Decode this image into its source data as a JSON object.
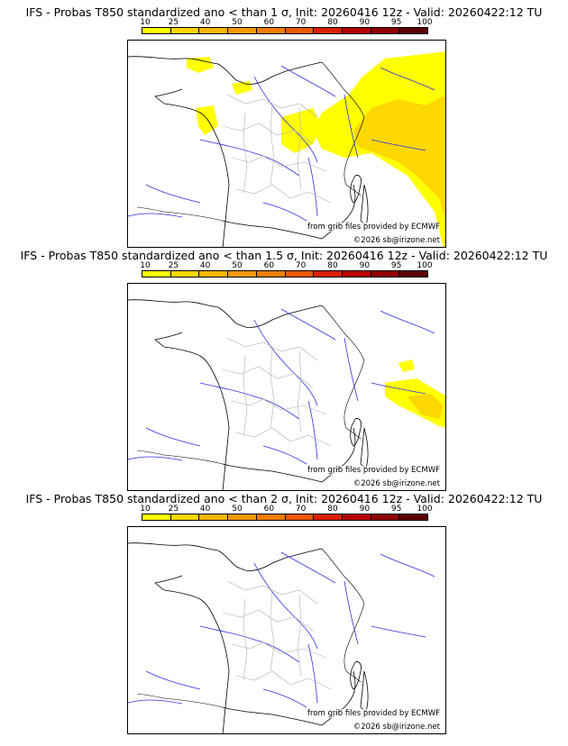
{
  "colorbar": {
    "ticks": [
      "10",
      "25",
      "40",
      "50",
      "60",
      "70",
      "80",
      "90",
      "95",
      "100"
    ],
    "colors": [
      "#ffff00",
      "#fcd700",
      "#f8b600",
      "#f59a00",
      "#f07e00",
      "#ea5800",
      "#d82000",
      "#b80000",
      "#900000",
      "#5c0000"
    ]
  },
  "panels": [
    {
      "title": "IFS - Probas T850  standardized ano < than 1 σ, Init: 20260416 12z - Valid: 20260422:12 TU",
      "source_credit": "from grib files provided by ECMWF",
      "copyright": "©2026 sb@irizone.net"
    },
    {
      "title": "IFS - Probas T850  standardized ano < than 1.5 σ, Init: 20260416 12z - Valid: 20260422:12 TU",
      "source_credit": "from grib files provided by ECMWF",
      "copyright": "©2026 sb@irizone.net"
    },
    {
      "title": "IFS - Probas T850  standardized ano < than 2 σ, Init: 20260416 12z - Valid: 20260422:12 TU",
      "source_credit": "from grib files provided by ECMWF",
      "copyright": "©2026 sb@irizone.net"
    }
  ],
  "map_colors": {
    "coast": "#000000",
    "rivers": "#3030e0",
    "borders": "#b0b0b0"
  }
}
